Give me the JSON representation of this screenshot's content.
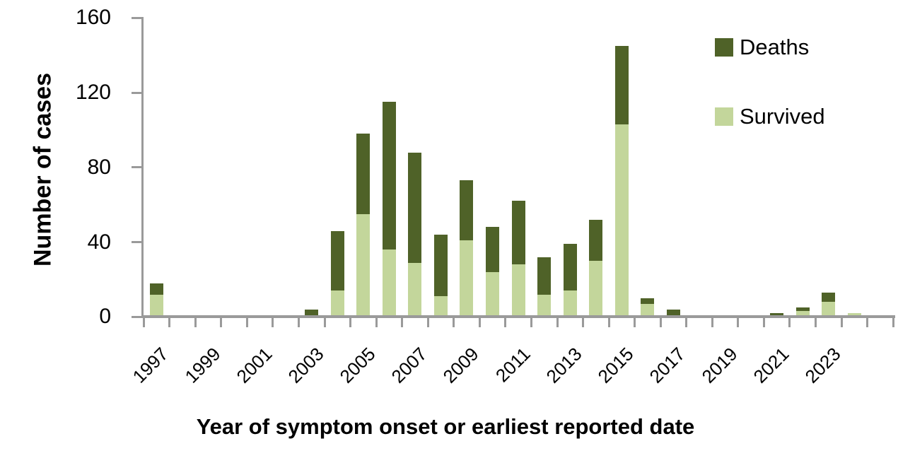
{
  "chart_data": {
    "type": "bar",
    "stacked": true,
    "title": "",
    "xlabel": "Year of symptom onset or earliest reported date",
    "ylabel": "Number of cases",
    "ylim": [
      0,
      160
    ],
    "yticks": [
      0,
      40,
      80,
      120,
      160
    ],
    "grid": false,
    "axis_color": "#9a9a9a",
    "text_color": "#000000",
    "categories": [
      "1997",
      "1998",
      "1999",
      "2000",
      "2001",
      "2002",
      "2003",
      "2004",
      "2005",
      "2006",
      "2007",
      "2008",
      "2009",
      "2010",
      "2011",
      "2012",
      "2013",
      "2014",
      "2015",
      "2016",
      "2017",
      "2018",
      "2019",
      "2020",
      "2021",
      "2022",
      "2023",
      "2024"
    ],
    "x_tick_labels": [
      "1997",
      "1999",
      "2001",
      "2003",
      "2005",
      "2007",
      "2009",
      "2011",
      "2013",
      "2015",
      "2017",
      "2019",
      "2021",
      "2023"
    ],
    "series": [
      {
        "name": "Survived",
        "color": "#C3D69B",
        "values": [
          12,
          0,
          0,
          0,
          0,
          0,
          0,
          14,
          55,
          36,
          29,
          11,
          41,
          24,
          28,
          12,
          14,
          30,
          103,
          7,
          1,
          0,
          0,
          1,
          0,
          3,
          8,
          2
        ]
      },
      {
        "name": "Deaths",
        "color": "#4F6228",
        "values": [
          6,
          0,
          0,
          0,
          0,
          0,
          4,
          32,
          43,
          79,
          59,
          33,
          32,
          24,
          34,
          20,
          25,
          22,
          42,
          3,
          3,
          0,
          1,
          0,
          2,
          2,
          5,
          0
        ]
      }
    ],
    "legend": {
      "position": "top-right",
      "items": [
        {
          "label": "Deaths",
          "color": "#4F6228"
        },
        {
          "label": "Survived",
          "color": "#C3D69B"
        }
      ]
    }
  }
}
